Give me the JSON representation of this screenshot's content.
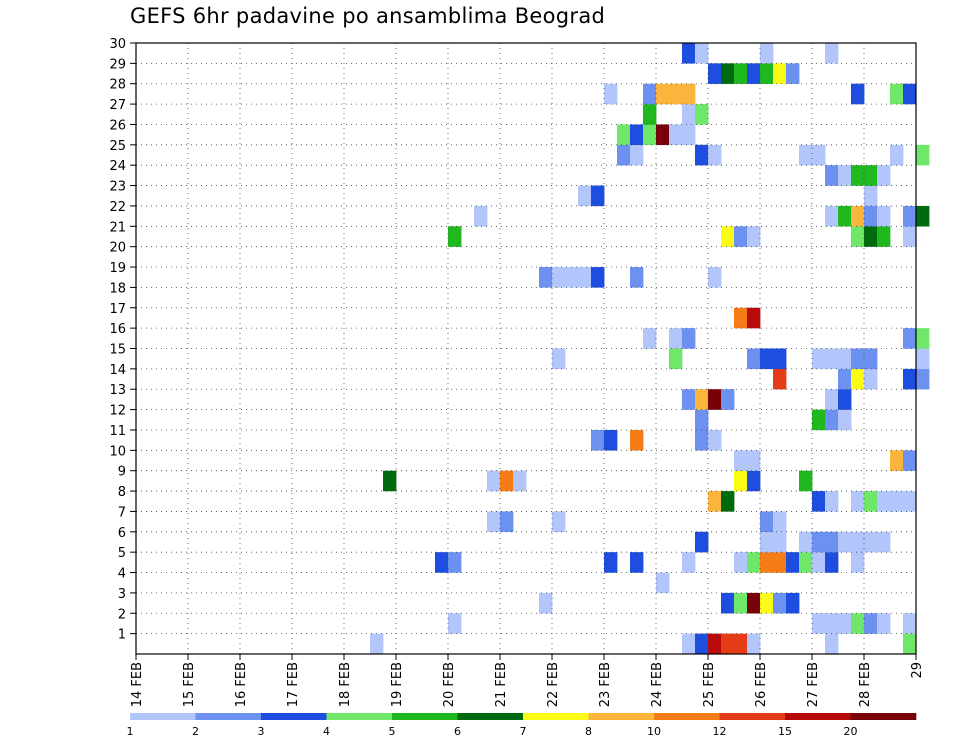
{
  "chart_data": {
    "type": "heatmap",
    "title": "GEFS 6hr padavine po ansamblima Beograd",
    "x_ticks": [
      "14 FEB",
      "15 FEB",
      "16 FEB",
      "17 FEB",
      "18 FEB",
      "19 FEB",
      "20 FEB",
      "21 FEB",
      "22 FEB",
      "23 FEB",
      "24 FEB",
      "25 FEB",
      "26 FEB",
      "27 FEB",
      "28 FEB",
      "29"
    ],
    "y_ticks": [
      1,
      2,
      3,
      4,
      5,
      6,
      7,
      8,
      9,
      10,
      11,
      12,
      13,
      14,
      15,
      16,
      17,
      18,
      19,
      20,
      21,
      22,
      23,
      24,
      25,
      26,
      27,
      28,
      29,
      30
    ],
    "xlim_days": [
      14,
      29
    ],
    "ylim": [
      0,
      30
    ],
    "grid": true,
    "colorbar": {
      "labels": [
        "1",
        "2",
        "3",
        "4",
        "5",
        "6",
        "7",
        "8",
        "10",
        "12",
        "15",
        "20"
      ],
      "colors": [
        "#b3c6fb",
        "#6c91f1",
        "#1d4ee0",
        "#6fe86a",
        "#1fb81f",
        "#006a0e",
        "#fbfb18",
        "#fbb43c",
        "#f57c17",
        "#e63b17",
        "#b80a0a",
        "#780008"
      ]
    },
    "cells": [
      {
        "x": 18.5,
        "y": 0,
        "c": 0
      },
      {
        "x": 24.5,
        "y": 0,
        "c": 0
      },
      {
        "x": 24.75,
        "y": 0,
        "c": 2
      },
      {
        "x": 25.0,
        "y": 0,
        "c": 10
      },
      {
        "x": 25.25,
        "y": 0,
        "c": 9
      },
      {
        "x": 25.5,
        "y": 0,
        "c": 9
      },
      {
        "x": 25.75,
        "y": 0,
        "c": 0
      },
      {
        "x": 27.25,
        "y": 0,
        "c": 0
      },
      {
        "x": 28.75,
        "y": 0,
        "c": 3
      },
      {
        "x": 20.0,
        "y": 1,
        "c": 0
      },
      {
        "x": 27.0,
        "y": 1,
        "c": 0
      },
      {
        "x": 27.25,
        "y": 1,
        "c": 0
      },
      {
        "x": 27.5,
        "y": 1,
        "c": 0
      },
      {
        "x": 27.75,
        "y": 1,
        "c": 3
      },
      {
        "x": 28.0,
        "y": 1,
        "c": 1
      },
      {
        "x": 28.25,
        "y": 1,
        "c": 0
      },
      {
        "x": 28.75,
        "y": 1,
        "c": 0
      },
      {
        "x": 21.75,
        "y": 2,
        "c": 0
      },
      {
        "x": 25.25,
        "y": 2,
        "c": 2
      },
      {
        "x": 25.5,
        "y": 2,
        "c": 3
      },
      {
        "x": 25.75,
        "y": 2,
        "c": 11
      },
      {
        "x": 26.0,
        "y": 2,
        "c": 6
      },
      {
        "x": 26.25,
        "y": 2,
        "c": 1
      },
      {
        "x": 26.5,
        "y": 2,
        "c": 2
      },
      {
        "x": 24.0,
        "y": 3,
        "c": 0
      },
      {
        "x": 19.75,
        "y": 4,
        "c": 2
      },
      {
        "x": 20.0,
        "y": 4,
        "c": 1
      },
      {
        "x": 23.0,
        "y": 4,
        "c": 2
      },
      {
        "x": 23.5,
        "y": 4,
        "c": 2
      },
      {
        "x": 24.5,
        "y": 4,
        "c": 0
      },
      {
        "x": 25.5,
        "y": 4,
        "c": 0
      },
      {
        "x": 25.75,
        "y": 4,
        "c": 3
      },
      {
        "x": 26.0,
        "y": 4,
        "c": 8
      },
      {
        "x": 26.25,
        "y": 4,
        "c": 8
      },
      {
        "x": 26.5,
        "y": 4,
        "c": 2
      },
      {
        "x": 26.75,
        "y": 4,
        "c": 3
      },
      {
        "x": 27.0,
        "y": 4,
        "c": 0
      },
      {
        "x": 27.25,
        "y": 4,
        "c": 2
      },
      {
        "x": 27.75,
        "y": 4,
        "c": 0
      },
      {
        "x": 24.75,
        "y": 5,
        "c": 2
      },
      {
        "x": 26.0,
        "y": 5,
        "c": 0
      },
      {
        "x": 26.25,
        "y": 5,
        "c": 0
      },
      {
        "x": 26.75,
        "y": 5,
        "c": 0
      },
      {
        "x": 27.0,
        "y": 5,
        "c": 1
      },
      {
        "x": 27.25,
        "y": 5,
        "c": 1
      },
      {
        "x": 27.5,
        "y": 5,
        "c": 0
      },
      {
        "x": 27.75,
        "y": 5,
        "c": 0
      },
      {
        "x": 28.0,
        "y": 5,
        "c": 0
      },
      {
        "x": 28.25,
        "y": 5,
        "c": 0
      },
      {
        "x": 20.75,
        "y": 6,
        "c": 0
      },
      {
        "x": 21.0,
        "y": 6,
        "c": 1
      },
      {
        "x": 22.0,
        "y": 6,
        "c": 0
      },
      {
        "x": 26.0,
        "y": 6,
        "c": 1
      },
      {
        "x": 26.25,
        "y": 6,
        "c": 0
      },
      {
        "x": 25.0,
        "y": 7,
        "c": 7
      },
      {
        "x": 25.25,
        "y": 7,
        "c": 5
      },
      {
        "x": 27.0,
        "y": 7,
        "c": 2
      },
      {
        "x": 27.25,
        "y": 7,
        "c": 0
      },
      {
        "x": 27.75,
        "y": 7,
        "c": 0
      },
      {
        "x": 28.0,
        "y": 7,
        "c": 3
      },
      {
        "x": 28.25,
        "y": 7,
        "c": 0
      },
      {
        "x": 28.5,
        "y": 7,
        "c": 0
      },
      {
        "x": 28.75,
        "y": 7,
        "c": 0
      },
      {
        "x": 18.75,
        "y": 8,
        "c": 5
      },
      {
        "x": 20.75,
        "y": 8,
        "c": 0
      },
      {
        "x": 21.0,
        "y": 8,
        "c": 8
      },
      {
        "x": 21.25,
        "y": 8,
        "c": 0
      },
      {
        "x": 25.5,
        "y": 8,
        "c": 6
      },
      {
        "x": 25.75,
        "y": 8,
        "c": 2
      },
      {
        "x": 26.75,
        "y": 8,
        "c": 4
      },
      {
        "x": 25.5,
        "y": 9,
        "c": 0
      },
      {
        "x": 25.75,
        "y": 9,
        "c": 0
      },
      {
        "x": 28.5,
        "y": 9,
        "c": 7
      },
      {
        "x": 28.75,
        "y": 9,
        "c": 1
      },
      {
        "x": 22.75,
        "y": 10,
        "c": 1
      },
      {
        "x": 23.0,
        "y": 10,
        "c": 2
      },
      {
        "x": 23.5,
        "y": 10,
        "c": 8
      },
      {
        "x": 24.75,
        "y": 10,
        "c": 1
      },
      {
        "x": 25.0,
        "y": 10,
        "c": 0
      },
      {
        "x": 24.75,
        "y": 11,
        "c": 1
      },
      {
        "x": 27.0,
        "y": 11,
        "c": 4
      },
      {
        "x": 27.25,
        "y": 11,
        "c": 1
      },
      {
        "x": 27.5,
        "y": 11,
        "c": 0
      },
      {
        "x": 24.5,
        "y": 12,
        "c": 1
      },
      {
        "x": 24.75,
        "y": 12,
        "c": 7
      },
      {
        "x": 25.0,
        "y": 12,
        "c": 11
      },
      {
        "x": 25.25,
        "y": 12,
        "c": 1
      },
      {
        "x": 27.25,
        "y": 12,
        "c": 0
      },
      {
        "x": 27.5,
        "y": 12,
        "c": 2
      },
      {
        "x": 26.25,
        "y": 13,
        "c": 9
      },
      {
        "x": 27.5,
        "y": 13,
        "c": 1
      },
      {
        "x": 27.75,
        "y": 13,
        "c": 6
      },
      {
        "x": 28.0,
        "y": 13,
        "c": 0
      },
      {
        "x": 28.75,
        "y": 13,
        "c": 2
      },
      {
        "x": 29.0,
        "y": 13,
        "c": 1
      },
      {
        "x": 22.0,
        "y": 14,
        "c": 0
      },
      {
        "x": 24.25,
        "y": 14,
        "c": 3
      },
      {
        "x": 25.75,
        "y": 14,
        "c": 1
      },
      {
        "x": 26.0,
        "y": 14,
        "c": 2
      },
      {
        "x": 26.25,
        "y": 14,
        "c": 2
      },
      {
        "x": 27.0,
        "y": 14,
        "c": 0
      },
      {
        "x": 27.25,
        "y": 14,
        "c": 0
      },
      {
        "x": 27.5,
        "y": 14,
        "c": 0
      },
      {
        "x": 27.75,
        "y": 14,
        "c": 1
      },
      {
        "x": 28.0,
        "y": 14,
        "c": 1
      },
      {
        "x": 29.0,
        "y": 14,
        "c": 0
      },
      {
        "x": 23.75,
        "y": 15,
        "c": 0
      },
      {
        "x": 24.25,
        "y": 15,
        "c": 0
      },
      {
        "x": 24.5,
        "y": 15,
        "c": 1
      },
      {
        "x": 28.75,
        "y": 15,
        "c": 1
      },
      {
        "x": 29.0,
        "y": 15,
        "c": 3
      },
      {
        "x": 25.5,
        "y": 16,
        "c": 8
      },
      {
        "x": 25.75,
        "y": 16,
        "c": 10
      },
      {
        "x": 21.75,
        "y": 18,
        "c": 1
      },
      {
        "x": 22.0,
        "y": 18,
        "c": 0
      },
      {
        "x": 22.25,
        "y": 18,
        "c": 0
      },
      {
        "x": 22.5,
        "y": 18,
        "c": 0
      },
      {
        "x": 22.75,
        "y": 18,
        "c": 2
      },
      {
        "x": 23.5,
        "y": 18,
        "c": 1
      },
      {
        "x": 25.0,
        "y": 18,
        "c": 0
      },
      {
        "x": 20.0,
        "y": 20,
        "c": 4
      },
      {
        "x": 25.25,
        "y": 20,
        "c": 6
      },
      {
        "x": 25.5,
        "y": 20,
        "c": 1
      },
      {
        "x": 25.75,
        "y": 20,
        "c": 0
      },
      {
        "x": 27.75,
        "y": 20,
        "c": 3
      },
      {
        "x": 28.0,
        "y": 20,
        "c": 5
      },
      {
        "x": 28.25,
        "y": 20,
        "c": 4
      },
      {
        "x": 28.75,
        "y": 20,
        "c": 0
      },
      {
        "x": 20.5,
        "y": 21,
        "c": 0
      },
      {
        "x": 27.25,
        "y": 21,
        "c": 0
      },
      {
        "x": 27.5,
        "y": 21,
        "c": 4
      },
      {
        "x": 27.75,
        "y": 21,
        "c": 7
      },
      {
        "x": 28.0,
        "y": 21,
        "c": 1
      },
      {
        "x": 28.25,
        "y": 21,
        "c": 0
      },
      {
        "x": 28.75,
        "y": 21,
        "c": 1
      },
      {
        "x": 29.0,
        "y": 21,
        "c": 5
      },
      {
        "x": 22.5,
        "y": 22,
        "c": 0
      },
      {
        "x": 22.75,
        "y": 22,
        "c": 2
      },
      {
        "x": 28.0,
        "y": 22,
        "c": 0
      },
      {
        "x": 27.25,
        "y": 23,
        "c": 1
      },
      {
        "x": 27.5,
        "y": 23,
        "c": 0
      },
      {
        "x": 27.75,
        "y": 23,
        "c": 4
      },
      {
        "x": 28.0,
        "y": 23,
        "c": 4
      },
      {
        "x": 28.25,
        "y": 23,
        "c": 0
      },
      {
        "x": 23.25,
        "y": 24,
        "c": 1
      },
      {
        "x": 23.5,
        "y": 24,
        "c": 0
      },
      {
        "x": 24.75,
        "y": 24,
        "c": 2
      },
      {
        "x": 25.0,
        "y": 24,
        "c": 0
      },
      {
        "x": 26.75,
        "y": 24,
        "c": 0
      },
      {
        "x": 27.0,
        "y": 24,
        "c": 0
      },
      {
        "x": 28.5,
        "y": 24,
        "c": 0
      },
      {
        "x": 29.0,
        "y": 24,
        "c": 3
      },
      {
        "x": 23.25,
        "y": 25,
        "c": 3
      },
      {
        "x": 23.5,
        "y": 25,
        "c": 2
      },
      {
        "x": 23.75,
        "y": 25,
        "c": 3
      },
      {
        "x": 24.0,
        "y": 25,
        "c": 11
      },
      {
        "x": 24.25,
        "y": 25,
        "c": 0
      },
      {
        "x": 24.5,
        "y": 25,
        "c": 0
      },
      {
        "x": 23.75,
        "y": 26,
        "c": 4
      },
      {
        "x": 24.5,
        "y": 26,
        "c": 0
      },
      {
        "x": 24.75,
        "y": 26,
        "c": 3
      },
      {
        "x": 23.0,
        "y": 27,
        "c": 0
      },
      {
        "x": 23.75,
        "y": 27,
        "c": 1
      },
      {
        "x": 24.0,
        "y": 27,
        "c": 7
      },
      {
        "x": 24.25,
        "y": 27,
        "c": 7
      },
      {
        "x": 24.5,
        "y": 27,
        "c": 7
      },
      {
        "x": 27.75,
        "y": 27,
        "c": 2
      },
      {
        "x": 28.5,
        "y": 27,
        "c": 3
      },
      {
        "x": 28.75,
        "y": 27,
        "c": 2
      },
      {
        "x": 25.0,
        "y": 28,
        "c": 2
      },
      {
        "x": 25.25,
        "y": 28,
        "c": 5
      },
      {
        "x": 25.5,
        "y": 28,
        "c": 4
      },
      {
        "x": 25.75,
        "y": 28,
        "c": 2
      },
      {
        "x": 26.0,
        "y": 28,
        "c": 4
      },
      {
        "x": 26.25,
        "y": 28,
        "c": 6
      },
      {
        "x": 26.5,
        "y": 28,
        "c": 1
      },
      {
        "x": 24.5,
        "y": 29,
        "c": 2
      },
      {
        "x": 24.75,
        "y": 29,
        "c": 0
      },
      {
        "x": 26.0,
        "y": 29,
        "c": 0
      },
      {
        "x": 27.25,
        "y": 29,
        "c": 0
      }
    ]
  }
}
